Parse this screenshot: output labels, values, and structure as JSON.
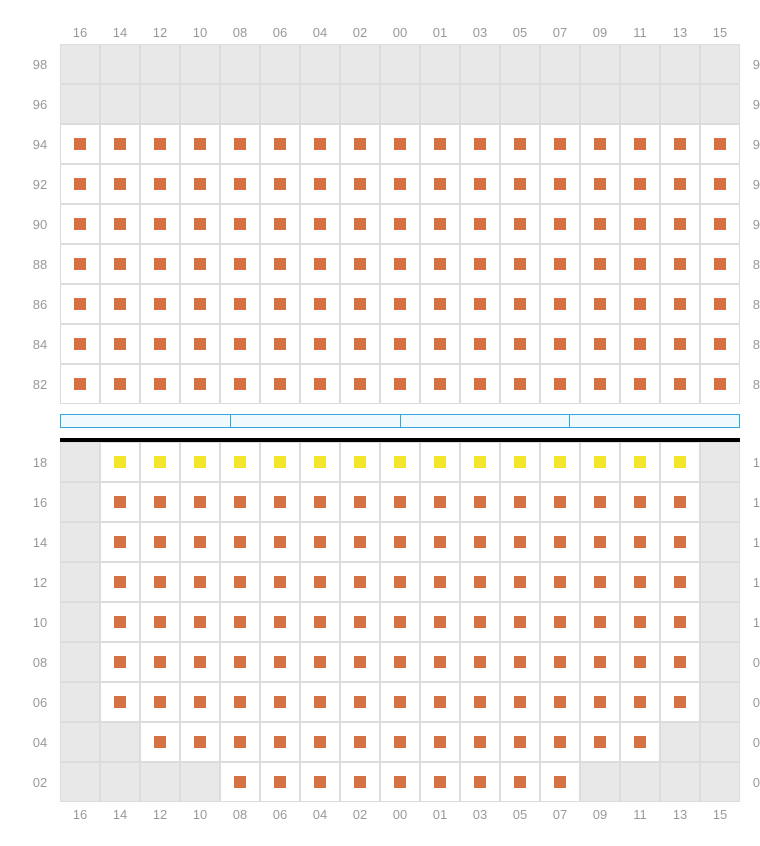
{
  "colors": {
    "seat_orange": "#d67143",
    "seat_yellow": "#f3e52a",
    "empty_bg": "#e8e8e8",
    "seat_bg": "#ffffff",
    "grid_border": "#dcdcdc",
    "label_text": "#999999",
    "barrier_border": "#33a8e0",
    "barrier_fill": "#eff9fe",
    "black_bar": "#000000"
  },
  "label_fontsize": 13,
  "columns": [
    "16",
    "14",
    "12",
    "10",
    "08",
    "06",
    "04",
    "02",
    "00",
    "01",
    "03",
    "05",
    "07",
    "09",
    "11",
    "13",
    "15"
  ],
  "upper": {
    "rows": [
      "98",
      "96",
      "94",
      "92",
      "90",
      "88",
      "86",
      "84",
      "82"
    ],
    "grid": [
      [
        "e",
        "e",
        "e",
        "e",
        "e",
        "e",
        "e",
        "e",
        "e",
        "e",
        "e",
        "e",
        "e",
        "e",
        "e",
        "e",
        "e"
      ],
      [
        "e",
        "e",
        "e",
        "e",
        "e",
        "e",
        "e",
        "e",
        "e",
        "e",
        "e",
        "e",
        "e",
        "e",
        "e",
        "e",
        "e"
      ],
      [
        "o",
        "o",
        "o",
        "o",
        "o",
        "o",
        "o",
        "o",
        "o",
        "o",
        "o",
        "o",
        "o",
        "o",
        "o",
        "o",
        "o"
      ],
      [
        "o",
        "o",
        "o",
        "o",
        "o",
        "o",
        "o",
        "o",
        "o",
        "o",
        "o",
        "o",
        "o",
        "o",
        "o",
        "o",
        "o"
      ],
      [
        "o",
        "o",
        "o",
        "o",
        "o",
        "o",
        "o",
        "o",
        "o",
        "o",
        "o",
        "o",
        "o",
        "o",
        "o",
        "o",
        "o"
      ],
      [
        "o",
        "o",
        "o",
        "o",
        "o",
        "o",
        "o",
        "o",
        "o",
        "o",
        "o",
        "o",
        "o",
        "o",
        "o",
        "o",
        "o"
      ],
      [
        "o",
        "o",
        "o",
        "o",
        "o",
        "o",
        "o",
        "o",
        "o",
        "o",
        "o",
        "o",
        "o",
        "o",
        "o",
        "o",
        "o"
      ],
      [
        "o",
        "o",
        "o",
        "o",
        "o",
        "o",
        "o",
        "o",
        "o",
        "o",
        "o",
        "o",
        "o",
        "o",
        "o",
        "o",
        "o"
      ],
      [
        "o",
        "o",
        "o",
        "o",
        "o",
        "o",
        "o",
        "o",
        "o",
        "o",
        "o",
        "o",
        "o",
        "o",
        "o",
        "o",
        "o"
      ]
    ]
  },
  "barrier_segments": 4,
  "lower": {
    "rows": [
      "18",
      "16",
      "14",
      "12",
      "10",
      "08",
      "06",
      "04",
      "02"
    ],
    "grid": [
      [
        "e",
        "y",
        "y",
        "y",
        "y",
        "y",
        "y",
        "y",
        "y",
        "y",
        "y",
        "y",
        "y",
        "y",
        "y",
        "y",
        "e"
      ],
      [
        "e",
        "o",
        "o",
        "o",
        "o",
        "o",
        "o",
        "o",
        "o",
        "o",
        "o",
        "o",
        "o",
        "o",
        "o",
        "o",
        "e"
      ],
      [
        "e",
        "o",
        "o",
        "o",
        "o",
        "o",
        "o",
        "o",
        "o",
        "o",
        "o",
        "o",
        "o",
        "o",
        "o",
        "o",
        "e"
      ],
      [
        "e",
        "o",
        "o",
        "o",
        "o",
        "o",
        "o",
        "o",
        "o",
        "o",
        "o",
        "o",
        "o",
        "o",
        "o",
        "o",
        "e"
      ],
      [
        "e",
        "o",
        "o",
        "o",
        "o",
        "o",
        "o",
        "o",
        "o",
        "o",
        "o",
        "o",
        "o",
        "o",
        "o",
        "o",
        "e"
      ],
      [
        "e",
        "o",
        "o",
        "o",
        "o",
        "o",
        "o",
        "o",
        "o",
        "o",
        "o",
        "o",
        "o",
        "o",
        "o",
        "o",
        "e"
      ],
      [
        "e",
        "o",
        "o",
        "o",
        "o",
        "o",
        "o",
        "o",
        "o",
        "o",
        "o",
        "o",
        "o",
        "o",
        "o",
        "o",
        "e"
      ],
      [
        "e",
        "e",
        "o",
        "o",
        "o",
        "o",
        "o",
        "o",
        "o",
        "o",
        "o",
        "o",
        "o",
        "o",
        "o",
        "e",
        "e"
      ],
      [
        "e",
        "e",
        "e",
        "e",
        "o",
        "o",
        "o",
        "o",
        "o",
        "o",
        "o",
        "o",
        "o",
        "e",
        "e",
        "e",
        "e"
      ]
    ]
  }
}
